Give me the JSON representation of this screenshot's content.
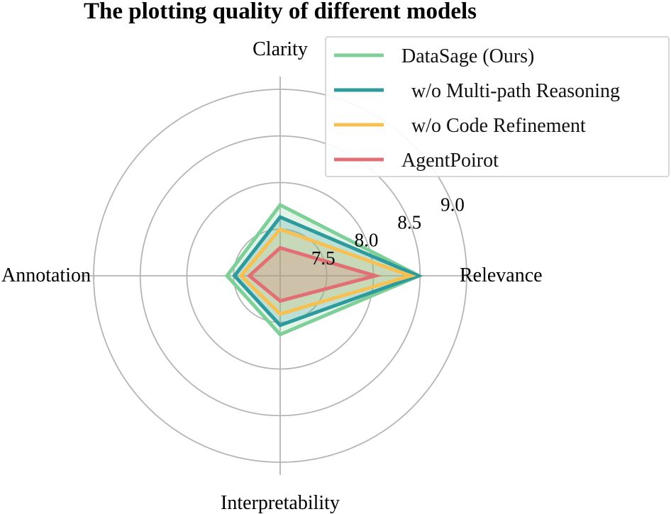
{
  "chart_data": {
    "type": "radar",
    "title": "The plotting quality of different models",
    "axes": [
      "Clarity",
      "Relevance",
      "Interpretability",
      "Annotation"
    ],
    "rlim": [
      7.0,
      9.0
    ],
    "ticks": [
      "7.5",
      "8.0",
      "8.5",
      "9.0"
    ],
    "tick_values": [
      7.5,
      8.0,
      8.5,
      9.0
    ],
    "grid": true,
    "legend_position": "top-right",
    "series": [
      {
        "name": "DataSage (Ours)",
        "color": "#7fcf99",
        "values": [
          7.76,
          8.49,
          7.63,
          7.57
        ]
      },
      {
        "name": "  w/o Multi-path Reasoning",
        "color": "#2e9a9c",
        "values": [
          7.63,
          8.48,
          7.53,
          7.49
        ]
      },
      {
        "name": "  w/o Code Refinement",
        "color": "#f7c052",
        "values": [
          7.5,
          8.4,
          7.41,
          7.42
        ]
      },
      {
        "name": "AgentPoirot",
        "color": "#e26f74",
        "values": [
          7.3,
          8.02,
          7.27,
          7.33
        ]
      }
    ]
  }
}
